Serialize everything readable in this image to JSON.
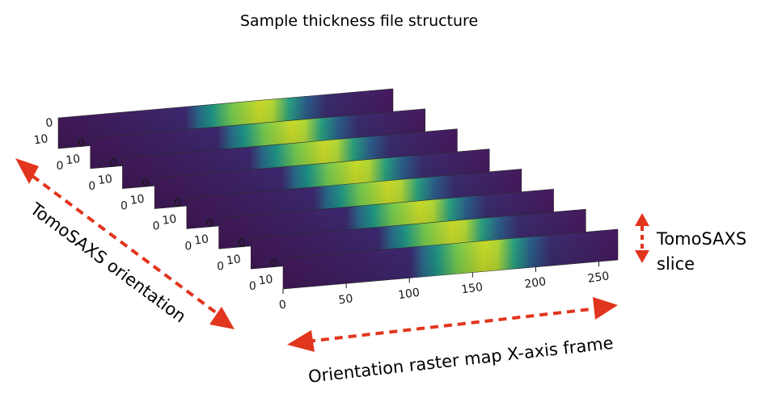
{
  "title": "Sample thickness file structure",
  "labels": {
    "orientation_axis": "TomoSAXS orientation",
    "x_axis_frame": "Orientation raster map X-axis frame",
    "slice_line1": "TomoSAXS",
    "slice_line2": "slice"
  },
  "front_slice_x_ticks": [
    "0",
    "50",
    "100",
    "150",
    "200",
    "250"
  ],
  "slice_y_ticks": [
    "0",
    "10"
  ],
  "slice_count": 8,
  "colors": {
    "arrow": "#e2351d",
    "viridis_dark": "#440154",
    "viridis_teal": "#21918c",
    "viridis_yellow": "#fde725"
  }
}
